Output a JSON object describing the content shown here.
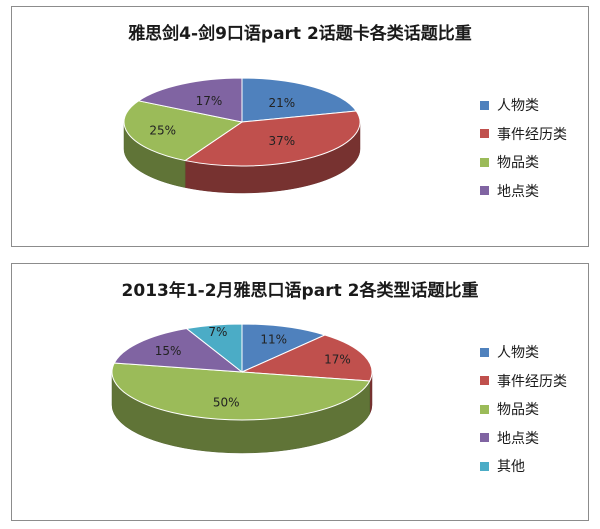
{
  "charts": [
    {
      "title": "雅思剑4-剑9口语part  2话题卡各类话题比重",
      "legend": [
        {
          "label": "人物类",
          "color": "#4f81bd"
        },
        {
          "label": "事件经历类",
          "color": "#c0504d"
        },
        {
          "label": "物品类",
          "color": "#9bbb59"
        },
        {
          "label": "地点类",
          "color": "#8064a2"
        }
      ],
      "slice_labels": [
        "21%",
        "37%",
        "25%",
        "17%"
      ]
    },
    {
      "title": "2013年1-2月雅思口语part 2各类型话题比重",
      "legend": [
        {
          "label": "人物类",
          "color": "#4f81bd"
        },
        {
          "label": "事件经历类",
          "color": "#c0504d"
        },
        {
          "label": "物品类",
          "color": "#9bbb59"
        },
        {
          "label": "地点类",
          "color": "#8064a2"
        },
        {
          "label": "其他",
          "color": "#4bacc6"
        }
      ],
      "slice_labels": [
        "11%",
        "17%",
        "50%",
        "15%",
        "7%"
      ]
    }
  ],
  "chart_data": [
    {
      "type": "pie",
      "title": "雅思剑4-剑9口语part  2话题卡各类话题比重",
      "categories": [
        "人物类",
        "事件经历类",
        "物品类",
        "地点类"
      ],
      "values": [
        21,
        37,
        25,
        17
      ],
      "legend": "right",
      "colors": [
        "#4f81bd",
        "#c0504d",
        "#9bbb59",
        "#8064a2"
      ]
    },
    {
      "type": "pie",
      "title": "2013年1-2月雅思口语part 2各类型话题比重",
      "categories": [
        "人物类",
        "事件经历类",
        "物品类",
        "地点类",
        "其他"
      ],
      "values": [
        11,
        17,
        50,
        15,
        7
      ],
      "legend": "right",
      "colors": [
        "#4f81bd",
        "#c0504d",
        "#9bbb59",
        "#8064a2",
        "#4bacc6"
      ]
    }
  ]
}
